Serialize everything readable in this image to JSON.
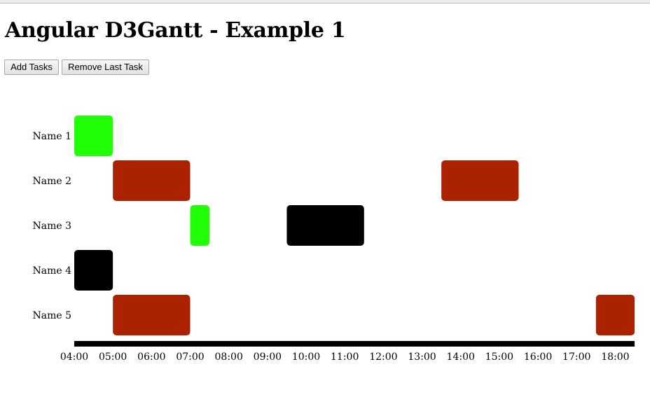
{
  "page": {
    "title": "Angular D3Gantt - Example 1"
  },
  "toolbar": {
    "add_label": "Add Tasks",
    "remove_label": "Remove Last Task"
  },
  "colors": {
    "succeeded": "#21ff06",
    "failed": "#aa2200",
    "running": "#000000",
    "axis": "#000000"
  },
  "chart_data": {
    "type": "gantt",
    "title": "",
    "xlabel": "",
    "ylabel": "",
    "xlim": [
      "04:00",
      "18:30"
    ],
    "x_ticks": [
      "04:00",
      "05:00",
      "06:00",
      "07:00",
      "08:00",
      "09:00",
      "10:00",
      "11:00",
      "12:00",
      "13:00",
      "14:00",
      "15:00",
      "16:00",
      "17:00",
      "18:00"
    ],
    "categories": [
      "Name 1",
      "Name 2",
      "Name 3",
      "Name 4",
      "Name 5"
    ],
    "tasks": [
      {
        "task": "Name 1",
        "start": "04:00",
        "end": "05:00",
        "status": "succeeded"
      },
      {
        "task": "Name 2",
        "start": "05:00",
        "end": "07:00",
        "status": "failed"
      },
      {
        "task": "Name 2",
        "start": "13:30",
        "end": "15:30",
        "status": "failed"
      },
      {
        "task": "Name 3",
        "start": "07:00",
        "end": "07:30",
        "status": "succeeded"
      },
      {
        "task": "Name 3",
        "start": "09:30",
        "end": "11:30",
        "status": "running"
      },
      {
        "task": "Name 4",
        "start": "04:00",
        "end": "05:00",
        "status": "running"
      },
      {
        "task": "Name 5",
        "start": "05:00",
        "end": "07:00",
        "status": "failed"
      },
      {
        "task": "Name 5",
        "start": "17:30",
        "end": "18:30",
        "status": "failed"
      }
    ],
    "grid": false,
    "legend": "none"
  }
}
